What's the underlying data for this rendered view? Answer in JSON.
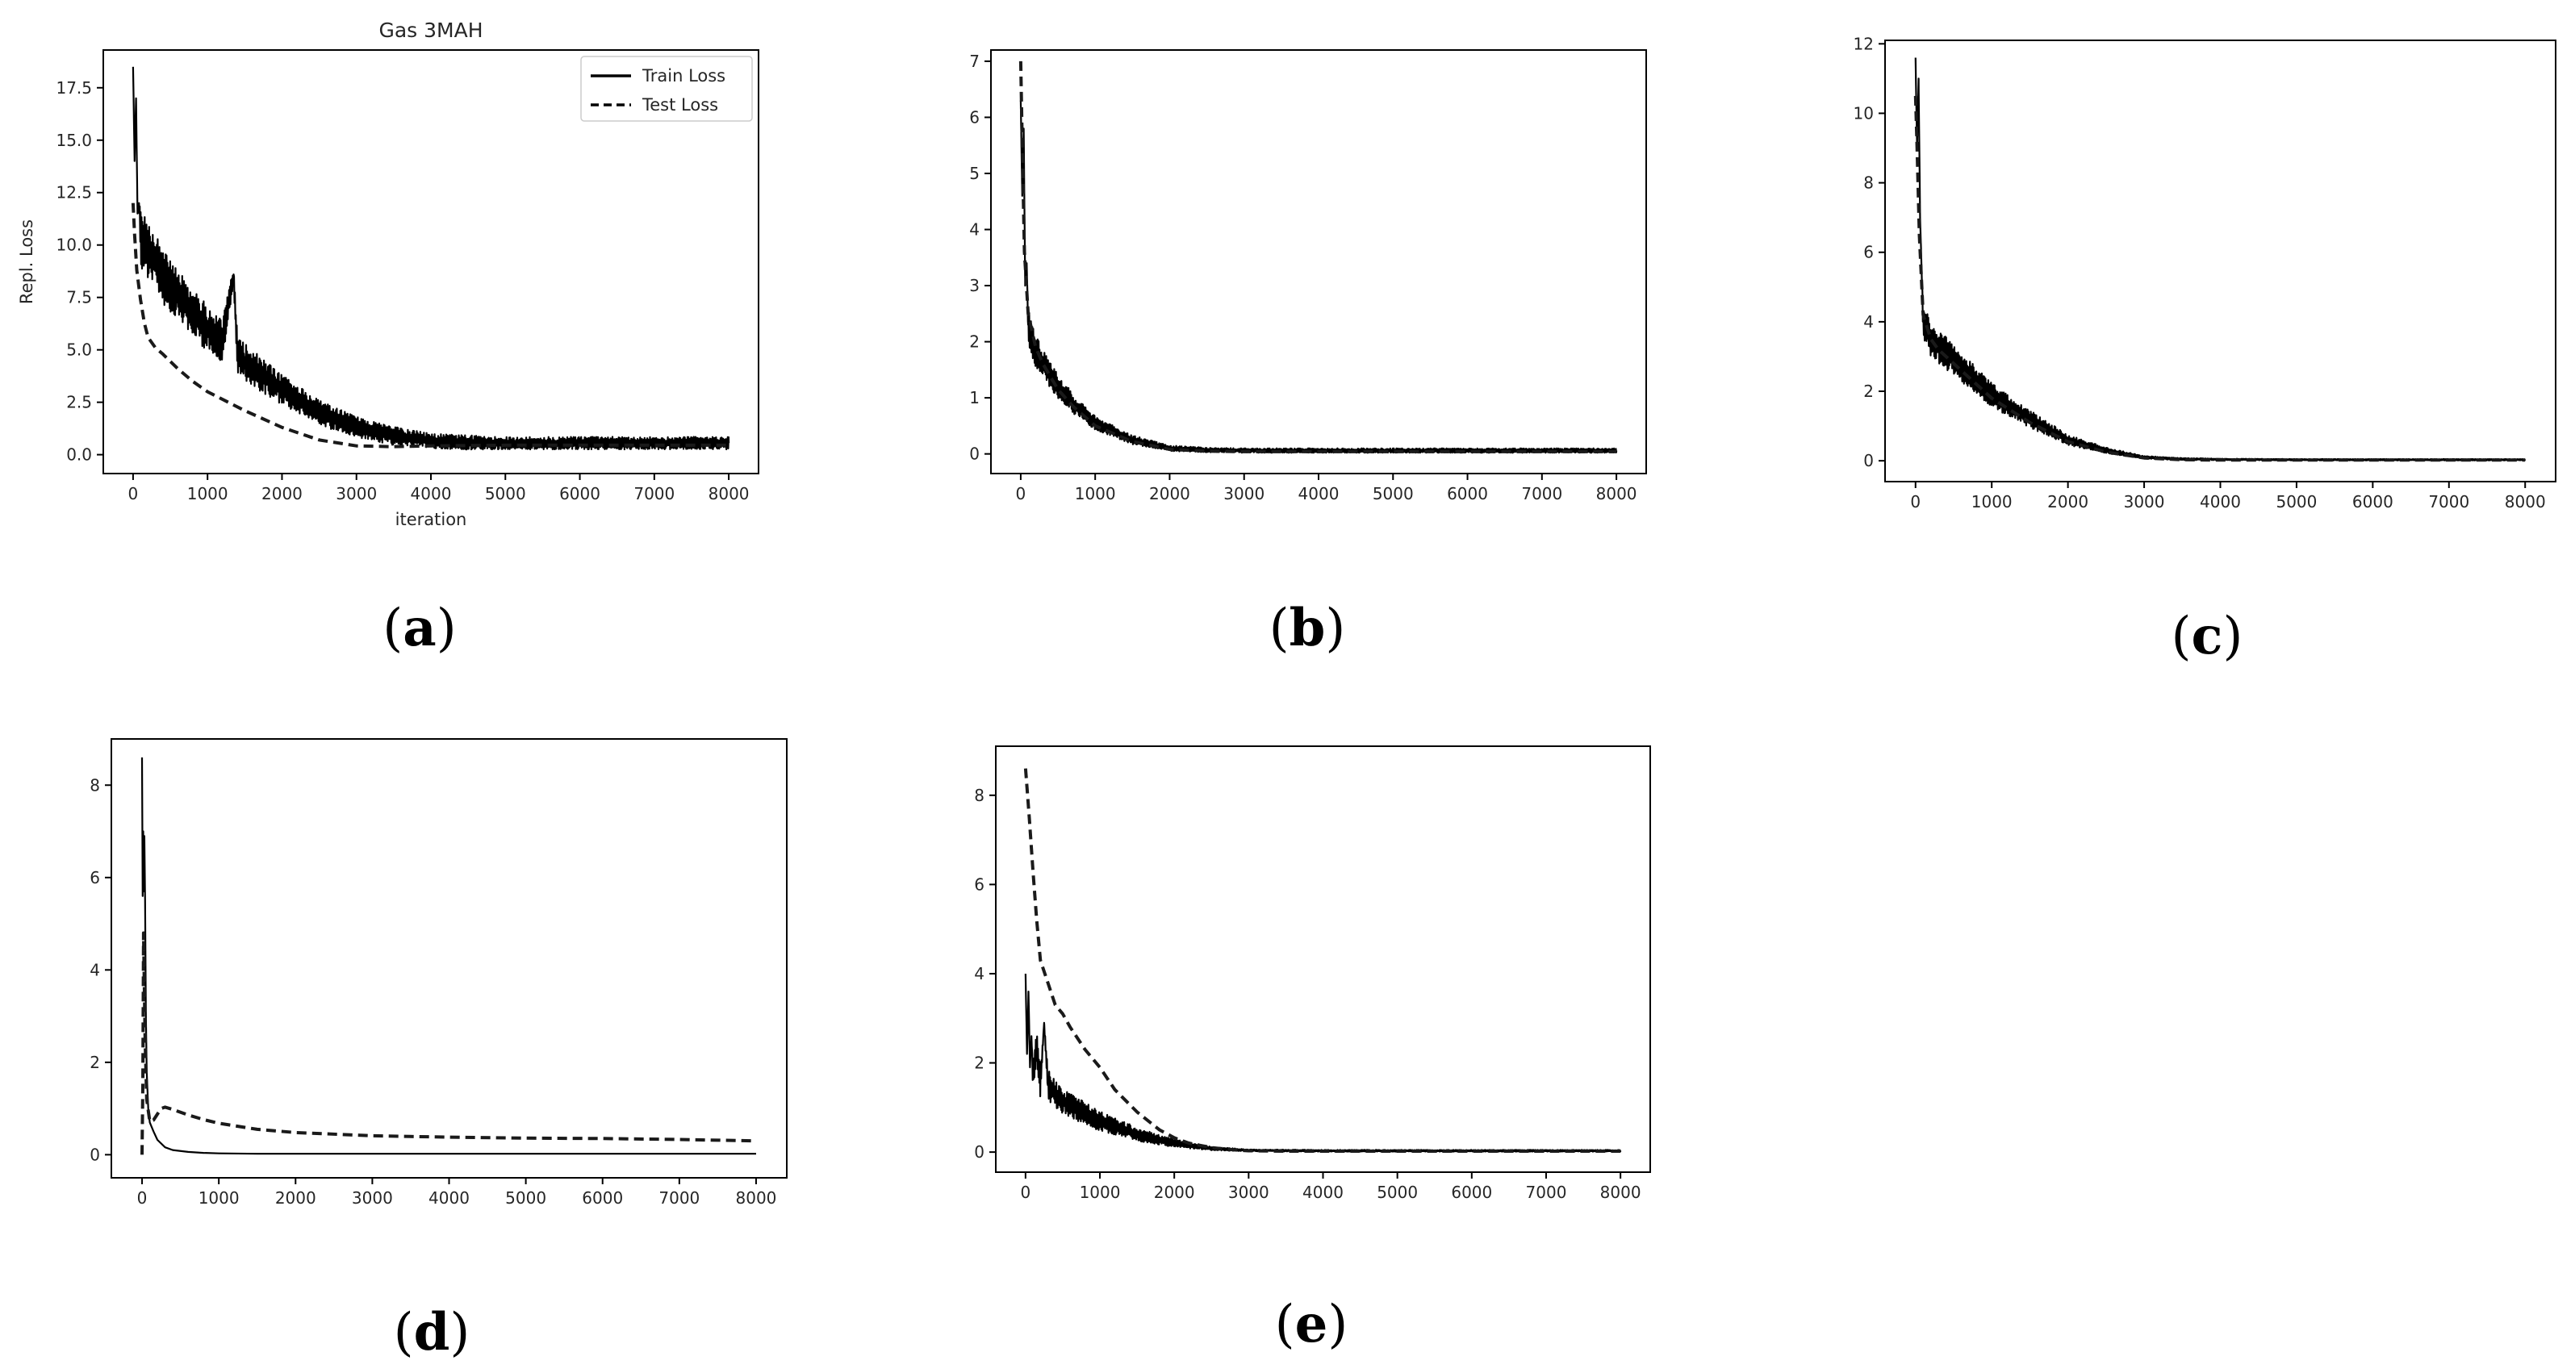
{
  "chart_data": [
    {
      "id": "a",
      "type": "line",
      "panel_label": "a",
      "title": "Gas 3MAH",
      "xlabel": "iteration",
      "ylabel": "Repl. Loss",
      "xlim": [
        -400,
        8400
      ],
      "ylim": [
        -0.9,
        19.3
      ],
      "xticks": [
        0,
        1000,
        2000,
        3000,
        4000,
        5000,
        6000,
        7000,
        8000
      ],
      "yticks": [
        0.0,
        2.5,
        5.0,
        7.5,
        10.0,
        12.5,
        15.0,
        17.5
      ],
      "ytick_labels": [
        "0.0",
        "2.5",
        "5.0",
        "7.5",
        "10.0",
        "12.5",
        "15.0",
        "17.5"
      ],
      "legend": {
        "placement": "top-right",
        "entries": [
          {
            "series": "train",
            "label": "Train Loss"
          },
          {
            "series": "test",
            "label": "Test Loss"
          }
        ]
      },
      "series": [
        {
          "key": "train",
          "style": "solid",
          "x": [
            0,
            20,
            40,
            60,
            80,
            100,
            150,
            200,
            300,
            400,
            600,
            800,
            1000,
            1200,
            1350,
            1400,
            1500,
            1800,
            2000,
            2500,
            3000,
            3500,
            4000,
            4500,
            5000,
            6000,
            7000,
            8000
          ],
          "y": [
            18.5,
            14.0,
            17.0,
            11.5,
            12.0,
            10.5,
            10.0,
            9.8,
            9.2,
            8.5,
            7.6,
            6.8,
            6.0,
            5.4,
            8.6,
            4.8,
            4.4,
            3.6,
            3.1,
            2.0,
            1.3,
            0.9,
            0.65,
            0.58,
            0.55,
            0.55,
            0.55,
            0.55
          ],
          "noise": [
            0,
            0,
            0,
            0,
            0,
            1.5,
            1.4,
            1.4,
            1.3,
            1.3,
            1.2,
            1.2,
            1.1,
            1.0,
            0.4,
            0.9,
            0.9,
            0.8,
            0.7,
            0.6,
            0.5,
            0.45,
            0.35,
            0.35,
            0.3,
            0.3,
            0.3,
            0.3
          ]
        },
        {
          "key": "test",
          "style": "dashed",
          "x": [
            0,
            20,
            50,
            100,
            150,
            200,
            300,
            400,
            600,
            800,
            1000,
            1500,
            2000,
            2500,
            3000,
            3500,
            4000,
            5000,
            6000,
            7000,
            8000
          ],
          "y": [
            12.0,
            10.5,
            8.8,
            7.4,
            6.3,
            5.6,
            5.1,
            4.8,
            4.1,
            3.5,
            3.0,
            2.1,
            1.3,
            0.7,
            0.42,
            0.38,
            0.42,
            0.45,
            0.45,
            0.45,
            0.45
          ]
        }
      ]
    },
    {
      "id": "b",
      "type": "line",
      "panel_label": "b",
      "xlim": [
        -400,
        8400
      ],
      "ylim": [
        -0.35,
        7.2
      ],
      "xticks": [
        0,
        1000,
        2000,
        3000,
        4000,
        5000,
        6000,
        7000,
        8000
      ],
      "yticks": [
        0,
        1,
        2,
        3,
        4,
        5,
        6,
        7
      ],
      "ytick_labels": [
        "0",
        "1",
        "2",
        "3",
        "4",
        "5",
        "6",
        "7"
      ],
      "series": [
        {
          "key": "train",
          "style": "solid",
          "x": [
            0,
            20,
            40,
            60,
            80,
            100,
            150,
            200,
            300,
            500,
            700,
            1000,
            1500,
            2000,
            2500,
            3000,
            4000,
            5000,
            6000,
            7000,
            8000
          ],
          "y": [
            6.3,
            4.6,
            5.8,
            3.0,
            3.4,
            2.3,
            2.0,
            1.85,
            1.6,
            1.2,
            0.9,
            0.55,
            0.25,
            0.1,
            0.07,
            0.06,
            0.06,
            0.06,
            0.06,
            0.06,
            0.06
          ],
          "noise": [
            0,
            0,
            0,
            0,
            0,
            0.3,
            0.3,
            0.3,
            0.25,
            0.22,
            0.18,
            0.12,
            0.08,
            0.05,
            0.04,
            0.04,
            0.04,
            0.04,
            0.04,
            0.04,
            0.04
          ]
        },
        {
          "key": "test",
          "style": "dashed",
          "x": [
            0,
            20,
            50,
            100,
            200,
            300,
            500,
            700,
            1000,
            1500,
            2000,
            2500,
            3000,
            4000,
            5000,
            6000,
            7000,
            8000
          ],
          "y": [
            7.0,
            5.5,
            3.6,
            2.5,
            1.9,
            1.6,
            1.15,
            0.85,
            0.5,
            0.22,
            0.08,
            0.05,
            0.04,
            0.04,
            0.04,
            0.04,
            0.04,
            0.04
          ]
        }
      ]
    },
    {
      "id": "c",
      "type": "line",
      "panel_label": "c",
      "xlim": [
        -400,
        8400
      ],
      "ylim": [
        -0.6,
        12.1
      ],
      "xticks": [
        0,
        1000,
        2000,
        3000,
        4000,
        5000,
        6000,
        7000,
        8000
      ],
      "yticks": [
        0,
        2,
        4,
        6,
        8,
        10,
        12
      ],
      "ytick_labels": [
        "0",
        "2",
        "4",
        "6",
        "8",
        "10",
        "12"
      ],
      "series": [
        {
          "key": "train",
          "style": "solid",
          "x": [
            0,
            20,
            40,
            60,
            80,
            100,
            150,
            200,
            300,
            500,
            700,
            1000,
            1500,
            2000,
            2500,
            3000,
            3500,
            4000,
            5000,
            6000,
            7000,
            8000
          ],
          "y": [
            11.6,
            9.0,
            11.0,
            7.0,
            5.5,
            4.0,
            3.8,
            3.5,
            3.3,
            2.9,
            2.5,
            1.9,
            1.2,
            0.6,
            0.3,
            0.1,
            0.05,
            0.04,
            0.03,
            0.03,
            0.03,
            0.03
          ],
          "noise": [
            0,
            0,
            0,
            0,
            0,
            0.5,
            0.5,
            0.5,
            0.5,
            0.45,
            0.4,
            0.35,
            0.25,
            0.15,
            0.08,
            0.04,
            0.03,
            0.02,
            0.02,
            0.02,
            0.02,
            0.02
          ]
        },
        {
          "key": "test",
          "style": "dashed",
          "x": [
            0,
            20,
            50,
            100,
            200,
            300,
            500,
            700,
            1000,
            1500,
            2000,
            2500,
            3000,
            3500,
            4000,
            5000,
            6000,
            7000,
            8000
          ],
          "y": [
            10.5,
            9.0,
            6.5,
            4.2,
            3.5,
            3.2,
            2.8,
            2.4,
            1.8,
            1.1,
            0.55,
            0.25,
            0.08,
            0.03,
            0.02,
            0.02,
            0.02,
            0.02,
            0.02
          ]
        }
      ]
    },
    {
      "id": "d",
      "type": "line",
      "panel_label": "d",
      "xlim": [
        -400,
        8400
      ],
      "ylim": [
        -0.5,
        9.0
      ],
      "xticks": [
        0,
        1000,
        2000,
        3000,
        4000,
        5000,
        6000,
        7000,
        8000
      ],
      "yticks": [
        0,
        2,
        4,
        6,
        8
      ],
      "ytick_labels": [
        "0",
        "2",
        "4",
        "6",
        "8"
      ],
      "series": [
        {
          "key": "train",
          "style": "solid",
          "x": [
            0,
            8,
            15,
            22,
            30,
            40,
            50,
            60,
            80,
            100,
            150,
            200,
            300,
            400,
            600,
            800,
            1000,
            1500,
            2000,
            3000,
            4000,
            5000,
            6000,
            7000,
            8000
          ],
          "y": [
            8.6,
            5.6,
            7.0,
            5.7,
            6.9,
            5.5,
            3.0,
            1.8,
            1.0,
            0.7,
            0.5,
            0.32,
            0.16,
            0.1,
            0.06,
            0.04,
            0.03,
            0.02,
            0.02,
            0.02,
            0.02,
            0.02,
            0.02,
            0.02,
            0.02
          ]
        },
        {
          "key": "test",
          "style": "dashed",
          "x": [
            0,
            10,
            20,
            40,
            60,
            100,
            150,
            200,
            250,
            300,
            400,
            600,
            800,
            1000,
            1500,
            2000,
            3000,
            4000,
            5000,
            6000,
            7000,
            8000
          ],
          "y": [
            0.0,
            1.5,
            4.8,
            2.5,
            1.2,
            0.72,
            0.75,
            0.88,
            1.0,
            1.03,
            0.98,
            0.86,
            0.76,
            0.68,
            0.55,
            0.48,
            0.41,
            0.38,
            0.36,
            0.35,
            0.33,
            0.3
          ]
        }
      ]
    },
    {
      "id": "e",
      "type": "line",
      "panel_label": "e",
      "xlim": [
        -400,
        8400
      ],
      "ylim": [
        -0.45,
        9.1
      ],
      "xticks": [
        0,
        1000,
        2000,
        3000,
        4000,
        5000,
        6000,
        7000,
        8000
      ],
      "yticks": [
        0,
        2,
        4,
        6,
        8
      ],
      "ytick_labels": [
        "0",
        "2",
        "4",
        "6",
        "8"
      ],
      "series": [
        {
          "key": "train",
          "style": "solid",
          "x": [
            0,
            20,
            40,
            60,
            80,
            100,
            150,
            200,
            250,
            300,
            400,
            500,
            700,
            1000,
            1500,
            2000,
            2500,
            3000,
            4000,
            5000,
            6000,
            7000,
            8000
          ],
          "y": [
            4.0,
            2.2,
            3.6,
            1.9,
            2.6,
            1.7,
            2.4,
            1.55,
            2.9,
            1.5,
            1.3,
            1.15,
            0.95,
            0.7,
            0.4,
            0.2,
            0.08,
            0.04,
            0.03,
            0.03,
            0.03,
            0.03,
            0.03
          ],
          "noise": [
            0,
            0,
            0,
            0,
            0,
            0.35,
            0.35,
            0.35,
            0,
            0.35,
            0.3,
            0.3,
            0.28,
            0.22,
            0.15,
            0.09,
            0.04,
            0.02,
            0.02,
            0.02,
            0.02,
            0.02,
            0.02
          ]
        },
        {
          "key": "test",
          "style": "dashed",
          "x": [
            0,
            50,
            100,
            150,
            200,
            300,
            400,
            500,
            600,
            800,
            1000,
            1200,
            1500,
            1800,
            2000,
            2200,
            2500,
            2800,
            3000,
            3500,
            4000,
            5000,
            6000,
            7000,
            8000
          ],
          "y": [
            8.6,
            7.5,
            6.3,
            5.2,
            4.3,
            3.8,
            3.3,
            3.1,
            2.8,
            2.3,
            1.9,
            1.4,
            0.9,
            0.5,
            0.32,
            0.2,
            0.1,
            0.05,
            0.03,
            0.02,
            0.02,
            0.02,
            0.02,
            0.02,
            0.02
          ]
        }
      ]
    }
  ]
}
